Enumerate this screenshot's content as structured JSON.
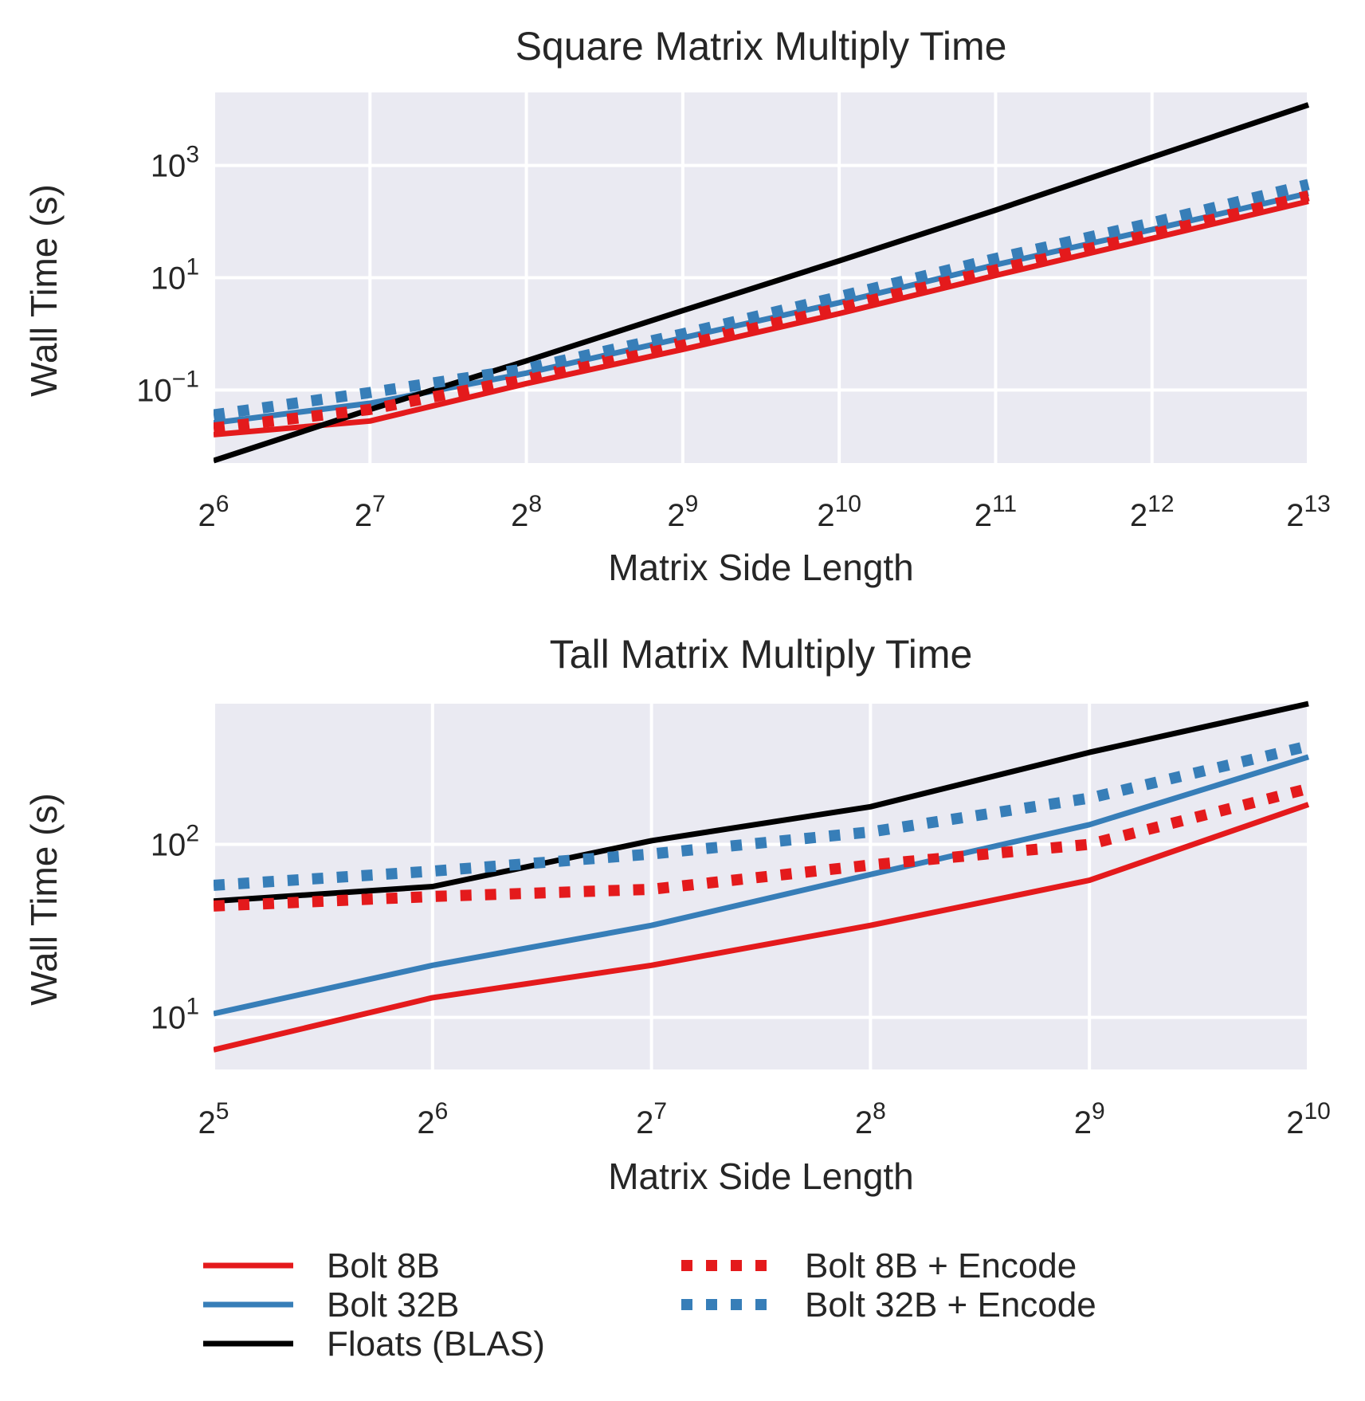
{
  "colors": {
    "bolt8": "#e41a1c",
    "bolt32": "#377eb8",
    "floats": "#000000",
    "plot_bg": "#eaeaf2",
    "grid": "#ffffff"
  },
  "chart_data": [
    {
      "type": "line",
      "title": "Square Matrix Multiply Time",
      "xlabel": "Matrix Side Length",
      "ylabel": "Wall Time (s)",
      "xscale": "log2",
      "yscale": "log10",
      "xlim": [
        64,
        8192
      ],
      "ylim": [
        0.005,
        20000
      ],
      "x_ticks": [
        {
          "base": "2",
          "exp": "6",
          "value": 64
        },
        {
          "base": "2",
          "exp": "7",
          "value": 128
        },
        {
          "base": "2",
          "exp": "8",
          "value": 256
        },
        {
          "base": "2",
          "exp": "9",
          "value": 512
        },
        {
          "base": "2",
          "exp": "10",
          "value": 1024
        },
        {
          "base": "2",
          "exp": "11",
          "value": 2048
        },
        {
          "base": "2",
          "exp": "12",
          "value": 4096
        },
        {
          "base": "2",
          "exp": "13",
          "value": 8192
        }
      ],
      "y_ticks": [
        {
          "base": "10",
          "exp": "−1",
          "value": 0.1
        },
        {
          "base": "10",
          "exp": "1",
          "value": 10
        },
        {
          "base": "10",
          "exp": "3",
          "value": 1000
        }
      ],
      "x": [
        64,
        128,
        256,
        512,
        1024,
        2048,
        4096,
        8192
      ],
      "series": [
        {
          "name": "Bolt 8B",
          "color_key": "bolt8",
          "style": "solid",
          "values": [
            0.016,
            0.028,
            0.13,
            0.53,
            2.3,
            11,
            50,
            230
          ]
        },
        {
          "name": "Bolt 32B",
          "color_key": "bolt32",
          "style": "solid",
          "values": [
            0.026,
            0.058,
            0.2,
            0.85,
            3.6,
            17,
            72,
            320
          ]
        },
        {
          "name": "Floats (BLAS)",
          "color_key": "floats",
          "style": "solid",
          "values": [
            0.0055,
            0.045,
            0.33,
            2.6,
            20,
            160,
            1400,
            12000
          ]
        },
        {
          "name": "Bolt 8B + Encode",
          "color_key": "bolt8",
          "style": "dotted",
          "values": [
            0.021,
            0.045,
            0.16,
            0.7,
            3.0,
            14,
            62,
            290
          ]
        },
        {
          "name": "Bolt 32B + Encode",
          "color_key": "bolt32",
          "style": "dotted",
          "values": [
            0.036,
            0.09,
            0.24,
            1.0,
            4.6,
            22,
            95,
            460
          ]
        }
      ]
    },
    {
      "type": "line",
      "title": "Tall Matrix Multiply Time",
      "xlabel": "Matrix Side Length",
      "ylabel": "Wall Time (s)",
      "xscale": "log2",
      "yscale": "log10",
      "xlim": [
        32,
        1024
      ],
      "ylim": [
        5,
        650
      ],
      "x_ticks": [
        {
          "base": "2",
          "exp": "5",
          "value": 32
        },
        {
          "base": "2",
          "exp": "6",
          "value": 64
        },
        {
          "base": "2",
          "exp": "7",
          "value": 128
        },
        {
          "base": "2",
          "exp": "8",
          "value": 256
        },
        {
          "base": "2",
          "exp": "9",
          "value": 512
        },
        {
          "base": "2",
          "exp": "10",
          "value": 1024
        }
      ],
      "y_ticks": [
        {
          "base": "10",
          "exp": "1",
          "value": 10
        },
        {
          "base": "10",
          "exp": "2",
          "value": 100
        }
      ],
      "x": [
        32,
        64,
        128,
        256,
        512,
        1024
      ],
      "series": [
        {
          "name": "Bolt 8B",
          "color_key": "bolt8",
          "style": "solid",
          "values": [
            6.5,
            13,
            20,
            34,
            62,
            170
          ]
        },
        {
          "name": "Bolt 32B",
          "color_key": "bolt32",
          "style": "solid",
          "values": [
            10.5,
            20,
            34,
            67,
            130,
            320
          ]
        },
        {
          "name": "Floats (BLAS)",
          "color_key": "floats",
          "style": "solid",
          "values": [
            47,
            57,
            105,
            165,
            340,
            650
          ]
        },
        {
          "name": "Bolt 8B + Encode",
          "color_key": "bolt8",
          "style": "dotted",
          "values": [
            44,
            50,
            55,
            76,
            100,
            210
          ]
        },
        {
          "name": "Bolt 32B + Encode",
          "color_key": "bolt32",
          "style": "dotted",
          "values": [
            58,
            70,
            88,
            118,
            185,
            370
          ]
        }
      ]
    }
  ],
  "legend": {
    "placement": "bottom",
    "entries": [
      {
        "label": "Bolt 8B",
        "color_key": "bolt8",
        "style": "solid"
      },
      {
        "label": "Bolt 32B",
        "color_key": "bolt32",
        "style": "solid"
      },
      {
        "label": "Floats (BLAS)",
        "color_key": "floats",
        "style": "solid"
      },
      {
        "label": "Bolt 8B + Encode",
        "color_key": "bolt8",
        "style": "dotted"
      },
      {
        "label": "Bolt 32B + Encode",
        "color_key": "bolt32",
        "style": "dotted"
      }
    ]
  }
}
